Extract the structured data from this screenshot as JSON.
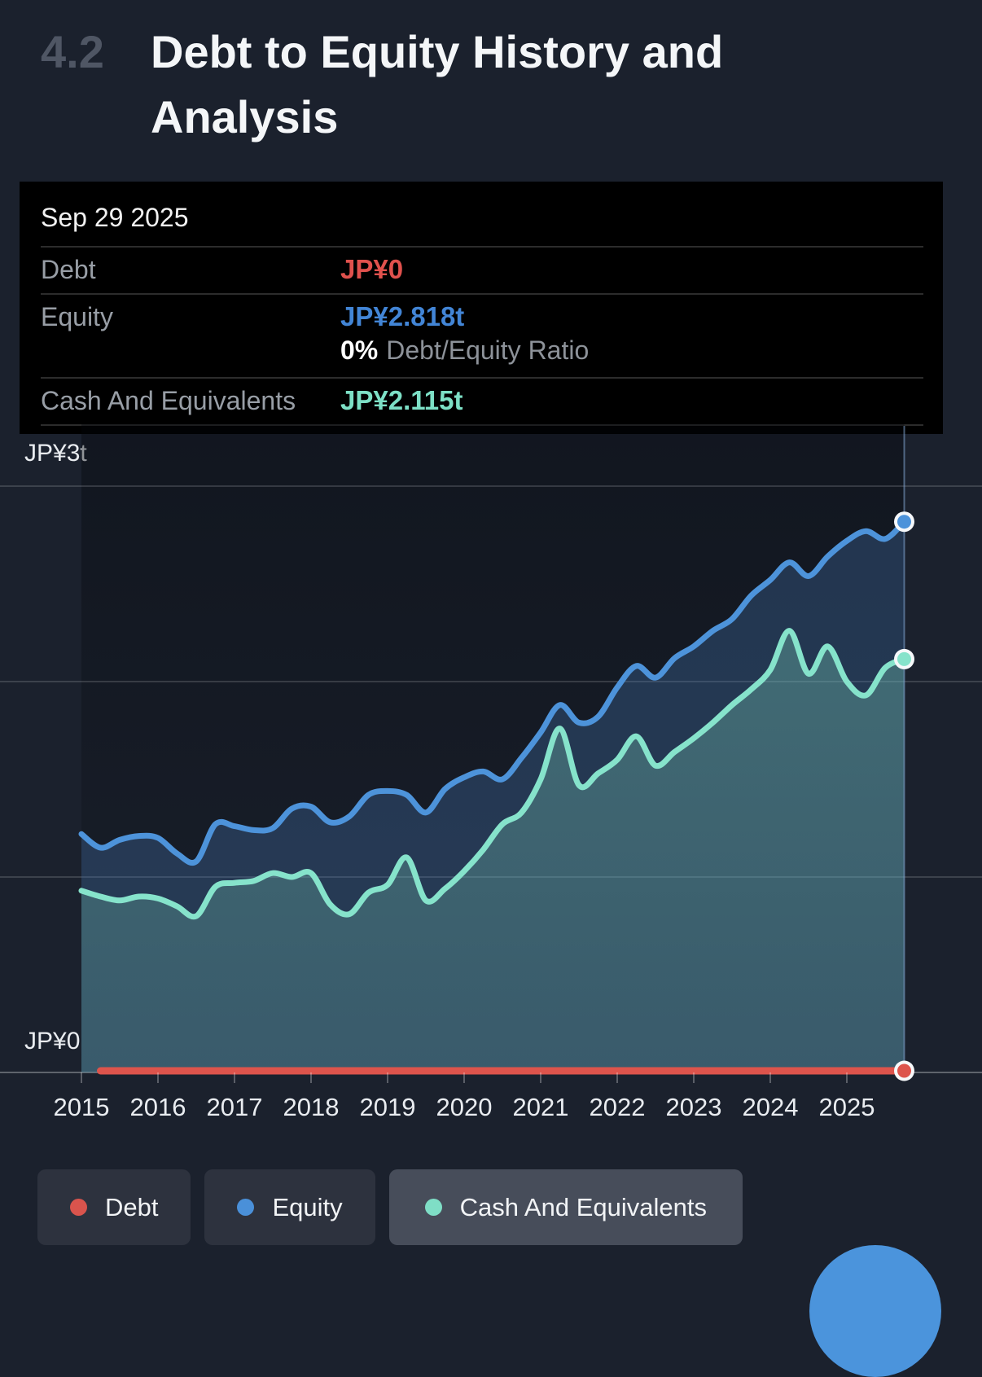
{
  "section": {
    "number": "4.2",
    "title": "Debt to Equity History and Analysis"
  },
  "tooltip": {
    "date": "Sep 29 2025",
    "rows": [
      {
        "label": "Debt",
        "value": "JP¥0",
        "color": "#e0514d"
      },
      {
        "label": "Equity",
        "value": "JP¥2.818t",
        "color": "#4285d6",
        "sub_value": "0%",
        "sub_label": "Debt/Equity Ratio"
      },
      {
        "label": "Cash And Equivalents",
        "value": "JP¥2.115t",
        "color": "#7de0c6"
      }
    ]
  },
  "chart_data": {
    "type": "area",
    "title": "Debt to Equity History and Analysis",
    "x_ticks": [
      2015,
      2016,
      2017,
      2018,
      2019,
      2020,
      2021,
      2022,
      2023,
      2024,
      2025
    ],
    "xlim": [
      2014.9,
      2026.2
    ],
    "ylim": [
      0,
      3.32
    ],
    "y_axis": {
      "unit": "JP¥ trillion",
      "gridlines": [
        0,
        1,
        2,
        3
      ],
      "top_label": "JP¥3t",
      "zero_label": "JP¥0"
    },
    "crosshair_x": 2025.75,
    "end_markers": true,
    "legend_position": "bottom",
    "series": [
      {
        "name": "Debt",
        "color": "#dd544c",
        "line_width": 9,
        "points": [
          [
            2015.25,
            0
          ],
          [
            2025.75,
            0
          ]
        ]
      },
      {
        "name": "Equity",
        "color": "#4d93da",
        "fill": "rgba(74,125,190,0.30)",
        "line_width": 7,
        "points": [
          [
            2015.0,
            1.22
          ],
          [
            2015.25,
            1.15
          ],
          [
            2015.5,
            1.19
          ],
          [
            2015.75,
            1.21
          ],
          [
            2016.0,
            1.2
          ],
          [
            2016.25,
            1.12
          ],
          [
            2016.5,
            1.08
          ],
          [
            2016.75,
            1.27
          ],
          [
            2017.0,
            1.26
          ],
          [
            2017.25,
            1.24
          ],
          [
            2017.5,
            1.25
          ],
          [
            2017.75,
            1.35
          ],
          [
            2018.0,
            1.36
          ],
          [
            2018.25,
            1.28
          ],
          [
            2018.5,
            1.31
          ],
          [
            2018.75,
            1.42
          ],
          [
            2019.0,
            1.44
          ],
          [
            2019.25,
            1.42
          ],
          [
            2019.5,
            1.33
          ],
          [
            2019.75,
            1.45
          ],
          [
            2020.0,
            1.51
          ],
          [
            2020.25,
            1.54
          ],
          [
            2020.5,
            1.5
          ],
          [
            2020.75,
            1.61
          ],
          [
            2021.0,
            1.74
          ],
          [
            2021.25,
            1.88
          ],
          [
            2021.5,
            1.79
          ],
          [
            2021.75,
            1.82
          ],
          [
            2022.0,
            1.97
          ],
          [
            2022.25,
            2.08
          ],
          [
            2022.5,
            2.02
          ],
          [
            2022.75,
            2.12
          ],
          [
            2023.0,
            2.18
          ],
          [
            2023.25,
            2.26
          ],
          [
            2023.5,
            2.32
          ],
          [
            2023.75,
            2.44
          ],
          [
            2024.0,
            2.52
          ],
          [
            2024.25,
            2.61
          ],
          [
            2024.5,
            2.54
          ],
          [
            2024.75,
            2.64
          ],
          [
            2025.0,
            2.72
          ],
          [
            2025.25,
            2.77
          ],
          [
            2025.5,
            2.73
          ],
          [
            2025.75,
            2.818
          ]
        ]
      },
      {
        "name": "Cash And Equivalents",
        "color": "#86e3cb",
        "fill_top": "rgba(129,217,191,0.32)",
        "fill_bottom": "rgba(129,217,191,0.20)",
        "line_width": 7,
        "points": [
          [
            2015.0,
            0.93
          ],
          [
            2015.25,
            0.9
          ],
          [
            2015.5,
            0.88
          ],
          [
            2015.75,
            0.9
          ],
          [
            2016.0,
            0.89
          ],
          [
            2016.25,
            0.85
          ],
          [
            2016.5,
            0.8
          ],
          [
            2016.75,
            0.95
          ],
          [
            2017.0,
            0.97
          ],
          [
            2017.25,
            0.98
          ],
          [
            2017.5,
            1.02
          ],
          [
            2017.75,
            1.0
          ],
          [
            2018.0,
            1.02
          ],
          [
            2018.25,
            0.86
          ],
          [
            2018.5,
            0.81
          ],
          [
            2018.75,
            0.92
          ],
          [
            2019.0,
            0.96
          ],
          [
            2019.25,
            1.1
          ],
          [
            2019.5,
            0.88
          ],
          [
            2019.75,
            0.94
          ],
          [
            2020.0,
            1.03
          ],
          [
            2020.25,
            1.14
          ],
          [
            2020.5,
            1.27
          ],
          [
            2020.75,
            1.33
          ],
          [
            2021.0,
            1.5
          ],
          [
            2021.25,
            1.76
          ],
          [
            2021.5,
            1.47
          ],
          [
            2021.75,
            1.53
          ],
          [
            2022.0,
            1.6
          ],
          [
            2022.25,
            1.72
          ],
          [
            2022.5,
            1.57
          ],
          [
            2022.75,
            1.64
          ],
          [
            2023.0,
            1.71
          ],
          [
            2023.25,
            1.79
          ],
          [
            2023.5,
            1.88
          ],
          [
            2023.75,
            1.96
          ],
          [
            2024.0,
            2.06
          ],
          [
            2024.25,
            2.26
          ],
          [
            2024.5,
            2.04
          ],
          [
            2024.75,
            2.18
          ],
          [
            2025.0,
            2.0
          ],
          [
            2025.25,
            1.93
          ],
          [
            2025.5,
            2.07
          ],
          [
            2025.75,
            2.115
          ]
        ]
      }
    ]
  },
  "legend": [
    {
      "label": "Debt",
      "color": "#d9544d",
      "selected": false
    },
    {
      "label": "Equity",
      "color": "#4a90d9",
      "selected": false
    },
    {
      "label": "Cash And Equivalents",
      "color": "#7fdec6",
      "selected": true
    }
  ],
  "fab": {
    "color": "#4b94dc"
  }
}
